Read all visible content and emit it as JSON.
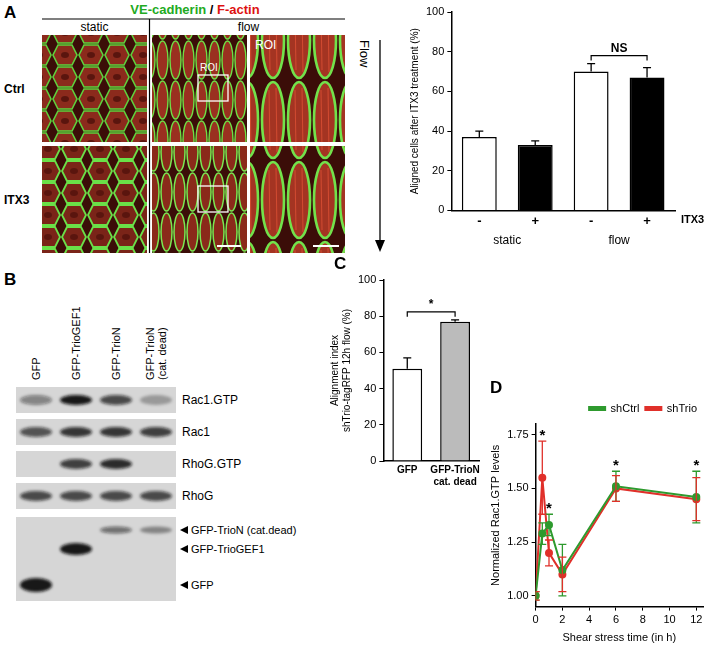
{
  "figure": {
    "panel_A": {
      "letter": "A",
      "title_parts": [
        {
          "text": "VE-cadherin",
          "color": "#22aa22"
        },
        {
          "text": " / ",
          "color": "#000000"
        },
        {
          "text": "F-actin",
          "color": "#dd1111"
        }
      ],
      "columns": [
        "static",
        "flow"
      ],
      "rows": [
        "Ctrl",
        "ITX3"
      ],
      "zoom_label": "ROI",
      "flow_label": "Flow"
    },
    "panel_B": {
      "letter": "B",
      "lanes": [
        "GFP",
        "GFP-TrioGEF1",
        "GFP-TrioN",
        [
          "GFP-TrioN",
          "(cat. dead)"
        ]
      ],
      "blots": [
        {
          "label": "Rac1.GTP",
          "bands": [
            0.45,
            1,
            0.75,
            0.3
          ]
        },
        {
          "label": "Rac1",
          "bands": [
            0.7,
            0.85,
            0.85,
            0.8
          ]
        },
        {
          "label": "RhoG.GTP",
          "bands": [
            0,
            0.8,
            0.9,
            0
          ]
        },
        {
          "label": "RhoG",
          "bands": [
            0.75,
            0.75,
            0.75,
            0.75
          ]
        }
      ],
      "marker_blot": [
        {
          "label": "GFP-TrioN (cat.dead)",
          "bands": [
            0,
            0,
            0.55,
            0.4
          ]
        },
        {
          "label": "GFP-TrioGEF1",
          "bands": [
            0,
            1,
            0,
            0
          ]
        },
        {
          "label": "GFP",
          "bands": [
            1,
            0,
            0,
            0
          ]
        }
      ]
    }
  },
  "chart_data": [
    {
      "type": "bar",
      "y_label": "Aligned cells after ITX3 treatment (%)",
      "categories": [
        "-",
        "+",
        "-",
        "+"
      ],
      "category_title": "ITX3",
      "groups": [
        "static",
        "flow"
      ],
      "values": [
        37,
        33,
        70,
        67
      ],
      "errors": [
        3,
        2,
        4,
        5
      ],
      "colors": [
        "#ffffff",
        "#000000",
        "#ffffff",
        "#000000"
      ],
      "ylim": [
        0,
        100
      ],
      "yticks": [
        0,
        20,
        40,
        60,
        80,
        100
      ],
      "grid": false,
      "annotations": [
        {
          "text": "NS",
          "group": "flow"
        }
      ]
    },
    {
      "type": "bar",
      "panel": "C",
      "y_label": [
        "Alignment index",
        "shTrio-tagRFP 12h flow (%)"
      ],
      "categories": [
        "GFP",
        [
          "GFP-TrioN",
          "cat. dead"
        ]
      ],
      "values": [
        51,
        77
      ],
      "errors": [
        6,
        1
      ],
      "colors": [
        "#ffffff",
        "#bbbbbb"
      ],
      "ylim": [
        0,
        100
      ],
      "yticks": [
        0,
        20,
        40,
        60,
        80,
        100
      ],
      "grid": false,
      "annotations": [
        {
          "text": "*"
        }
      ]
    },
    {
      "type": "line",
      "panel": "D",
      "x_label": "Shear stress time (in h)",
      "y_label": "Normalized Rac1.GTP levels",
      "x": [
        0,
        0.5,
        1,
        2,
        6,
        12
      ],
      "series": [
        {
          "name": "shCtrl",
          "color": "#2e9a2e",
          "marker": "circle",
          "line_style": "solid",
          "values": [
            1.0,
            1.29,
            1.33,
            1.12,
            1.51,
            1.46
          ],
          "errors": [
            0.02,
            0.05,
            0.05,
            0.12,
            0.07,
            0.12
          ]
        },
        {
          "name": "shTrio",
          "color": "#e0302a",
          "marker": "circle",
          "line_style": "solid",
          "values": [
            1.0,
            1.55,
            1.2,
            1.1,
            1.5,
            1.45
          ],
          "errors": [
            0.02,
            0.17,
            0.06,
            0.08,
            0.06,
            0.1
          ]
        }
      ],
      "xlim": [
        0,
        12.5
      ],
      "xticks": [
        0,
        2,
        4,
        6,
        8,
        10,
        12
      ],
      "ylim": [
        0.95,
        1.8
      ],
      "yticks": [
        {
          "value": 1,
          "label": "1.00"
        },
        1.25,
        {
          "value": 1.5,
          "label": "1.50"
        },
        1.75
      ],
      "grid": false,
      "legend": "upper right",
      "annotations": [
        {
          "text": "*",
          "x": 0.5
        },
        {
          "text": "*",
          "x": 1
        },
        {
          "text": "*",
          "x": 6
        },
        {
          "text": "*",
          "x": 12
        }
      ]
    }
  ]
}
